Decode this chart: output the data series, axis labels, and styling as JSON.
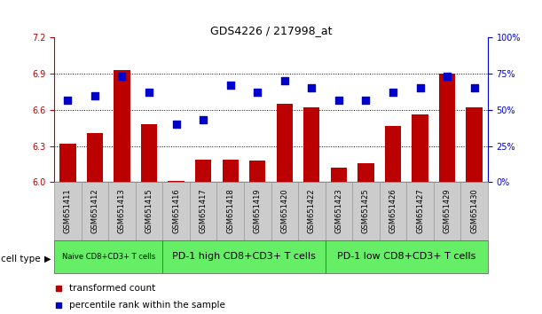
{
  "title": "GDS4226 / 217998_at",
  "samples": [
    "GSM651411",
    "GSM651412",
    "GSM651413",
    "GSM651415",
    "GSM651416",
    "GSM651417",
    "GSM651418",
    "GSM651419",
    "GSM651420",
    "GSM651422",
    "GSM651423",
    "GSM651425",
    "GSM651426",
    "GSM651427",
    "GSM651429",
    "GSM651430"
  ],
  "transformed_count": [
    6.32,
    6.41,
    6.93,
    6.48,
    6.01,
    6.19,
    6.19,
    6.18,
    6.65,
    6.62,
    6.12,
    6.16,
    6.47,
    6.56,
    6.9,
    6.62
  ],
  "percentile_rank": [
    57,
    60,
    73,
    62,
    40,
    43,
    67,
    62,
    70,
    65,
    57,
    57,
    62,
    65,
    73,
    65
  ],
  "ylim_left": [
    6.0,
    7.2
  ],
  "ylim_right": [
    0,
    100
  ],
  "yticks_left": [
    6.0,
    6.3,
    6.6,
    6.9,
    7.2
  ],
  "yticks_right": [
    0,
    25,
    50,
    75,
    100
  ],
  "bar_color": "#bb0000",
  "dot_color": "#0000cc",
  "group_labels": [
    "Naive CD8+CD3+ T cells",
    "PD-1 high CD8+CD3+ T cells",
    "PD-1 low CD8+CD3+ T cells"
  ],
  "group_ranges": [
    [
      0,
      3
    ],
    [
      4,
      9
    ],
    [
      10,
      15
    ]
  ],
  "group_color": "#66ee66",
  "sample_box_color": "#cccccc",
  "cell_type_label": "cell type",
  "legend_bar_label": "transformed count",
  "legend_dot_label": "percentile rank within the sample",
  "bar_width": 0.6,
  "dot_size": 30,
  "tick_fontsize": 7,
  "title_fontsize": 9,
  "label_fontsize": 6,
  "group_fontsize_small": 6,
  "group_fontsize_large": 8
}
